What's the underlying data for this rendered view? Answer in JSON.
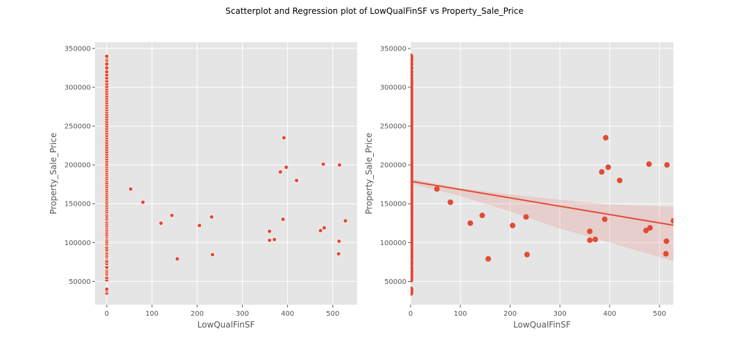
{
  "figure": {
    "title": "Scatterplot and Regression plot of LowQualFinSF vs Property_Sale_Price"
  },
  "colors": {
    "background": "#e5e5e5",
    "grid": "#ffffff",
    "marker": "#e24a33",
    "marker_edge": "#ffffff",
    "band": "#e24a33"
  },
  "chart_data": [
    {
      "type": "scatter",
      "title": "",
      "xlabel": "LowQualFinSF",
      "ylabel": "Property_Sale_Price",
      "xlim": [
        -26,
        554
      ],
      "ylim": [
        20000,
        358000
      ],
      "xticks": [
        0,
        100,
        200,
        300,
        400,
        500
      ],
      "yticks": [
        50000,
        100000,
        150000,
        200000,
        250000,
        300000,
        350000
      ],
      "grid": true,
      "x_zero_values": [
        34900,
        37900,
        40000,
        52000,
        55000,
        58500,
        60000,
        62383,
        64500,
        67000,
        68400,
        72500,
        73000,
        76000,
        79500,
        81000,
        82500,
        85000,
        87000,
        89471,
        91000,
        94000,
        97000,
        98600,
        101000,
        103600,
        106000,
        108000,
        110000,
        112500,
        115000,
        117000,
        119500,
        121600,
        124000,
        126500,
        129000,
        130500,
        133000,
        135500,
        138000,
        140000,
        142500,
        145000,
        147400,
        150000,
        152000,
        154500,
        157000,
        159500,
        162000,
        164500,
        167000,
        169500,
        172000,
        174500,
        177000,
        180000,
        182500,
        185000,
        187500,
        190000,
        192500,
        195000,
        197500,
        200000,
        202500,
        205000,
        208000,
        211000,
        214000,
        217000,
        220000,
        223000,
        226000,
        229000,
        232000,
        235000,
        238000,
        241000,
        244000,
        247000,
        250000,
        253000,
        256000,
        259000,
        262000,
        265000,
        268000,
        271000,
        274000,
        277000,
        280000,
        283000,
        286000,
        289000,
        292000,
        295000,
        298000,
        301000,
        304500,
        308000,
        312000,
        316000,
        320000,
        325000,
        330000,
        335000,
        338000,
        340000
      ],
      "points": [
        {
          "x": 53,
          "y": 169000
        },
        {
          "x": 80,
          "y": 152000
        },
        {
          "x": 120,
          "y": 125000
        },
        {
          "x": 144,
          "y": 135000
        },
        {
          "x": 156,
          "y": 79000
        },
        {
          "x": 205,
          "y": 122000
        },
        {
          "x": 232,
          "y": 133000
        },
        {
          "x": 234,
          "y": 84500
        },
        {
          "x": 360,
          "y": 114500
        },
        {
          "x": 360,
          "y": 103000
        },
        {
          "x": 371,
          "y": 104000
        },
        {
          "x": 384,
          "y": 191000
        },
        {
          "x": 390,
          "y": 130000
        },
        {
          "x": 392,
          "y": 235000
        },
        {
          "x": 397,
          "y": 197000
        },
        {
          "x": 420,
          "y": 180000
        },
        {
          "x": 473,
          "y": 115500
        },
        {
          "x": 479,
          "y": 201000
        },
        {
          "x": 481,
          "y": 119000
        },
        {
          "x": 513,
          "y": 85500
        },
        {
          "x": 514,
          "y": 101800
        },
        {
          "x": 515,
          "y": 200000
        },
        {
          "x": 528,
          "y": 128000
        }
      ]
    },
    {
      "type": "scatter",
      "title": "",
      "xlabel": "LowQualFinSF",
      "ylabel": "Property_Sale_Price",
      "xlim": [
        0,
        528
      ],
      "ylim": [
        20000,
        358000
      ],
      "xticks": [
        0,
        100,
        200,
        300,
        400,
        500
      ],
      "yticks": [
        50000,
        100000,
        150000,
        200000,
        250000,
        300000,
        350000
      ],
      "grid": true,
      "regression": {
        "intercept": 179000,
        "slope": -107.3,
        "ci_band": [
          {
            "x": 0,
            "lower": 176000,
            "upper": 182000
          },
          {
            "x": 100,
            "lower": 160000,
            "upper": 170000
          },
          {
            "x": 200,
            "lower": 140000,
            "upper": 162000
          },
          {
            "x": 300,
            "lower": 118000,
            "upper": 155000
          },
          {
            "x": 400,
            "lower": 100000,
            "upper": 149000
          },
          {
            "x": 528,
            "lower": 76000,
            "upper": 146000
          }
        ]
      }
    }
  ]
}
